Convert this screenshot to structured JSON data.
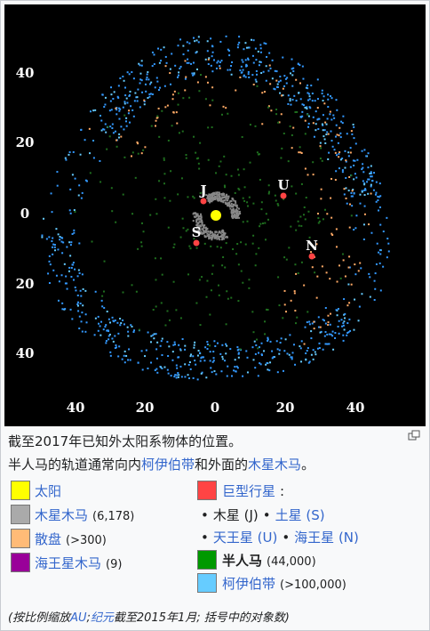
{
  "figure": {
    "plot": {
      "y_labels": [
        "40",
        "20",
        "0",
        "20",
        "40"
      ],
      "x_labels": [
        "40",
        "20",
        "0",
        "20",
        "40"
      ],
      "planet_labels": [
        "J",
        "S",
        "U",
        "N"
      ]
    },
    "caption": [
      [
        {
          "text": "截至2017年已知外太阳系物体的位置。"
        }
      ],
      [
        {
          "text": "半人马的轨道通常向内"
        },
        {
          "text": "柯伊伯带",
          "link": true
        },
        {
          "text": "和外面的"
        },
        {
          "text": "木星木马",
          "link": true
        },
        {
          "text": "。"
        }
      ]
    ],
    "legend_left": [
      {
        "color": "#ffff00",
        "parts": [
          {
            "text": "太阳",
            "link": true
          }
        ]
      },
      {
        "color": "#aaaaaa",
        "parts": [
          {
            "text": "木星木马",
            "link": true
          },
          {
            "text": "(6,178)",
            "small": true
          }
        ]
      },
      {
        "color": "#ffbb77",
        "parts": [
          {
            "text": "散盘",
            "link": true
          },
          {
            "text": "(>300)",
            "small": true
          }
        ]
      },
      {
        "color": "#990099",
        "parts": [
          {
            "text": "海王星木马",
            "link": true
          },
          {
            "text": "(9)",
            "small": true
          }
        ]
      }
    ],
    "legend_right": [
      {
        "color": "#ff4444",
        "parts": [
          {
            "text": "巨型行星",
            "link": true
          },
          {
            "text": ":"
          }
        ]
      },
      {
        "parts": [
          {
            "text": "•"
          },
          {
            "text": "木星 (J)"
          },
          {
            "text": "•"
          },
          {
            "text": "土星 (S)",
            "link": true
          }
        ]
      },
      {
        "parts": [
          {
            "text": "•"
          },
          {
            "text": "天王星 (U)",
            "link": true
          },
          {
            "text": "•"
          },
          {
            "text": "海王星 (N)",
            "link": true
          }
        ]
      },
      {
        "color": "#009900",
        "parts": [
          {
            "text": "半人马",
            "bold": true
          },
          {
            "text": "(44,000)",
            "small": true
          }
        ]
      },
      {
        "color": "#66ccff",
        "parts": [
          {
            "text": "柯伊伯带",
            "link": true
          },
          {
            "text": "(>100,000)",
            "small": true
          }
        ]
      }
    ],
    "footnote": [
      {
        "text": "(按比例缩放"
      },
      {
        "text": "AU",
        "link": true
      },
      {
        "text": ";"
      },
      {
        "text": "纪元",
        "link": true
      },
      {
        "text": "截至2015年1月; 括号中的对象数)"
      }
    ]
  }
}
